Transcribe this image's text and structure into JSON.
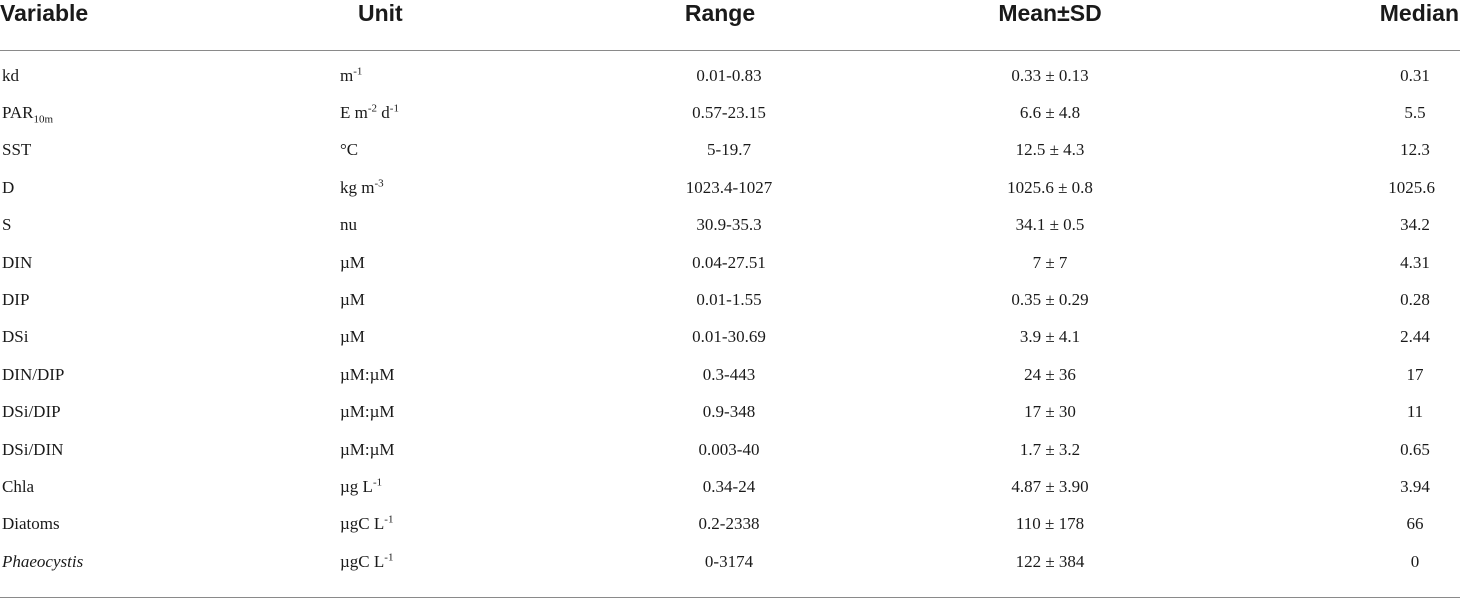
{
  "headers": {
    "variable": "Variable",
    "unit": "Unit",
    "range": "Range",
    "mean": "Mean±SD",
    "median": "Median"
  },
  "rows": [
    {
      "var": "kd",
      "unit": "m",
      "unit_sup": "-1",
      "range": "0.01-0.83",
      "mean": "0.33 ± 0.13",
      "median": "0.31"
    },
    {
      "var": "PAR",
      "var_sub": "10m",
      "unit": "E m",
      "unit_sup": "-2",
      "unit2": " d",
      "unit2_sup": "-1",
      "range": "0.57-23.15",
      "mean": "6.6 ± 4.8",
      "median": "5.5"
    },
    {
      "var": "SST",
      "unit": "°C",
      "range": "5-19.7",
      "mean": "12.5 ± 4.3",
      "median": "12.3"
    },
    {
      "var": "D",
      "unit": "kg m",
      "unit_sup": "-3",
      "range": "1023.4-1027",
      "mean": "1025.6 ± 0.8",
      "median": "1025.6"
    },
    {
      "var": "S",
      "unit": "nu",
      "range": "30.9-35.3",
      "mean": "34.1 ± 0.5",
      "median": "34.2"
    },
    {
      "var": "DIN",
      "unit": "µM",
      "range": "0.04-27.51",
      "mean": "7 ± 7",
      "median": "4.31"
    },
    {
      "var": "DIP",
      "unit": "µM",
      "range": "0.01-1.55",
      "mean": "0.35 ± 0.29",
      "median": "0.28"
    },
    {
      "var": "DSi",
      "unit": "µM",
      "range": "0.01-30.69",
      "mean": "3.9 ± 4.1",
      "median": "2.44"
    },
    {
      "var": "DIN/DIP",
      "unit": "µM:µM",
      "range": "0.3-443",
      "mean": "24 ± 36",
      "median": "17"
    },
    {
      "var": "DSi/DIP",
      "unit": "µM:µM",
      "range": "0.9-348",
      "mean": "17 ± 30",
      "median": "11"
    },
    {
      "var": "DSi/DIN",
      "unit": "µM:µM",
      "range": "0.003-40",
      "mean": "1.7 ± 3.2",
      "median": "0.65"
    },
    {
      "var": "Chla",
      "unit": "µg L",
      "unit_sup": "-1",
      "range": "0.34-24",
      "mean": "4.87 ± 3.90",
      "median": "3.94"
    },
    {
      "var": "Diatoms",
      "unit": "µgC L",
      "unit_sup": "-1",
      "range": "0.2-2338",
      "mean": "110 ± 178",
      "median": "66"
    },
    {
      "var": "Phaeocystis",
      "italic": true,
      "unit": "µgC L",
      "unit_sup": "-1",
      "range": "0-3174",
      "mean": "122 ± 384",
      "median": "0"
    }
  ]
}
